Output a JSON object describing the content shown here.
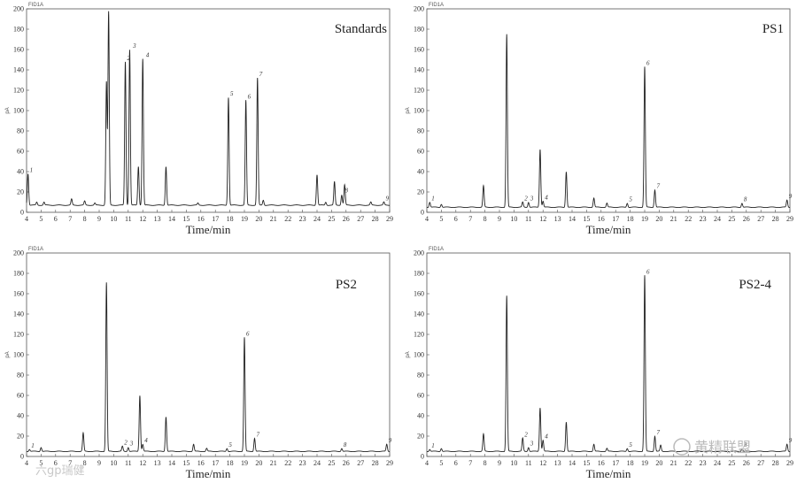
{
  "chart_data": [
    {
      "type": "line",
      "title": "Standards",
      "detector": "FID1A",
      "ylabel": "pA",
      "xlabel": "Time/min",
      "xlim": [
        4,
        29
      ],
      "ylim": [
        0,
        200
      ],
      "xticks": [
        4,
        5,
        6,
        7,
        8,
        9,
        10,
        11,
        12,
        13,
        14,
        15,
        16,
        17,
        18,
        19,
        20,
        21,
        22,
        23,
        24,
        25,
        26,
        27,
        28,
        29
      ],
      "yticks": [
        0,
        20,
        40,
        60,
        80,
        100,
        120,
        140,
        160,
        180,
        200
      ],
      "baseline": 7,
      "peaks": [
        [
          4.1,
          38
        ],
        [
          4.7,
          10
        ],
        [
          5.2,
          10
        ],
        [
          7.1,
          13
        ],
        [
          8.0,
          11
        ],
        [
          8.7,
          9
        ],
        [
          9.5,
          128
        ],
        [
          9.65,
          197
        ],
        [
          10.8,
          148
        ],
        [
          11.1,
          160
        ],
        [
          11.7,
          45
        ],
        [
          12.0,
          151
        ],
        [
          13.6,
          45
        ],
        [
          15.8,
          9
        ],
        [
          17.9,
          113
        ],
        [
          19.1,
          110
        ],
        [
          19.9,
          132
        ],
        [
          20.3,
          12
        ],
        [
          24.0,
          37
        ],
        [
          24.6,
          10
        ],
        [
          25.2,
          30
        ],
        [
          25.7,
          17
        ],
        [
          25.9,
          27
        ],
        [
          27.7,
          10
        ],
        [
          28.6,
          10
        ]
      ],
      "peak_labels": [
        {
          "x": 4.1,
          "y": 38,
          "t": "1"
        },
        {
          "x": 10.8,
          "y": 148,
          "t": "2"
        },
        {
          "x": 11.2,
          "y": 160,
          "t": "3"
        },
        {
          "x": 12.1,
          "y": 151,
          "t": "4"
        },
        {
          "x": 17.9,
          "y": 113,
          "t": "5"
        },
        {
          "x": 19.1,
          "y": 110,
          "t": "6"
        },
        {
          "x": 19.9,
          "y": 132,
          "t": "7"
        },
        {
          "x": 25.8,
          "y": 18,
          "t": "8"
        },
        {
          "x": 28.6,
          "y": 10,
          "t": "9"
        }
      ]
    },
    {
      "type": "line",
      "title": "PS1",
      "detector": "FID1A",
      "ylabel": "pA",
      "xlabel": "Time/min",
      "xlim": [
        4,
        29
      ],
      "ylim": [
        0,
        200
      ],
      "xticks": [
        4,
        5,
        6,
        7,
        8,
        9,
        10,
        11,
        12,
        13,
        14,
        15,
        16,
        17,
        18,
        19,
        20,
        21,
        22,
        23,
        24,
        25,
        26,
        27,
        28,
        29
      ],
      "yticks": [
        0,
        20,
        40,
        60,
        80,
        100,
        120,
        140,
        160,
        180,
        200
      ],
      "baseline": 5,
      "peaks": [
        [
          4.2,
          10
        ],
        [
          5.0,
          8
        ],
        [
          7.9,
          26
        ],
        [
          9.5,
          175
        ],
        [
          10.6,
          10
        ],
        [
          11.0,
          10
        ],
        [
          11.8,
          62
        ],
        [
          12.0,
          11
        ],
        [
          13.6,
          40
        ],
        [
          15.5,
          14
        ],
        [
          16.4,
          9
        ],
        [
          17.8,
          9
        ],
        [
          19.0,
          143
        ],
        [
          19.7,
          22
        ],
        [
          25.7,
          9
        ],
        [
          28.8,
          12
        ]
      ],
      "peak_labels": [
        {
          "x": 4.2,
          "y": 10,
          "t": "1"
        },
        {
          "x": 10.6,
          "y": 10,
          "t": "2"
        },
        {
          "x": 11.0,
          "y": 10,
          "t": "3"
        },
        {
          "x": 12.0,
          "y": 11,
          "t": "4"
        },
        {
          "x": 17.8,
          "y": 9,
          "t": "5"
        },
        {
          "x": 19.0,
          "y": 143,
          "t": "6"
        },
        {
          "x": 19.7,
          "y": 22,
          "t": "7"
        },
        {
          "x": 25.7,
          "y": 9,
          "t": "8"
        },
        {
          "x": 28.8,
          "y": 12,
          "t": "9"
        }
      ]
    },
    {
      "type": "line",
      "title": "PS2",
      "detector": "FID1A",
      "ylabel": "pA",
      "xlabel": "Time/min",
      "xlim": [
        4,
        29
      ],
      "ylim": [
        0,
        200
      ],
      "xticks": [
        4,
        5,
        6,
        7,
        8,
        9,
        10,
        11,
        12,
        13,
        14,
        15,
        16,
        17,
        18,
        19,
        20,
        21,
        22,
        23,
        24,
        25,
        26,
        27,
        28,
        29
      ],
      "yticks": [
        0,
        20,
        40,
        60,
        80,
        100,
        120,
        140,
        160,
        180,
        200
      ],
      "baseline": 5,
      "peaks": [
        [
          4.2,
          7
        ],
        [
          5.0,
          9
        ],
        [
          7.9,
          23
        ],
        [
          9.5,
          171
        ],
        [
          10.6,
          10
        ],
        [
          11.0,
          9
        ],
        [
          11.8,
          60
        ],
        [
          12.0,
          12
        ],
        [
          13.6,
          39
        ],
        [
          15.5,
          12
        ],
        [
          16.4,
          8
        ],
        [
          17.8,
          8
        ],
        [
          19.0,
          117
        ],
        [
          19.7,
          18
        ],
        [
          25.7,
          8
        ],
        [
          28.8,
          12
        ]
      ],
      "peak_labels": [
        {
          "x": 4.2,
          "y": 7,
          "t": "1"
        },
        {
          "x": 10.6,
          "y": 10,
          "t": "2"
        },
        {
          "x": 11.0,
          "y": 9,
          "t": "3"
        },
        {
          "x": 12.0,
          "y": 12,
          "t": "4"
        },
        {
          "x": 17.8,
          "y": 8,
          "t": "5"
        },
        {
          "x": 19.0,
          "y": 117,
          "t": "6"
        },
        {
          "x": 19.7,
          "y": 18,
          "t": "7"
        },
        {
          "x": 25.7,
          "y": 8,
          "t": "8"
        },
        {
          "x": 28.8,
          "y": 12,
          "t": "9"
        }
      ]
    },
    {
      "type": "line",
      "title": "PS2-4",
      "detector": "FID1A",
      "ylabel": "pA",
      "xlabel": "Time/min",
      "xlim": [
        4,
        29
      ],
      "ylim": [
        0,
        200
      ],
      "xticks": [
        4,
        5,
        6,
        7,
        8,
        9,
        10,
        11,
        12,
        13,
        14,
        15,
        16,
        17,
        18,
        19,
        20,
        21,
        22,
        23,
        24,
        25,
        26,
        27,
        28,
        29
      ],
      "yticks": [
        0,
        20,
        40,
        60,
        80,
        100,
        120,
        140,
        160,
        180,
        200
      ],
      "baseline": 5,
      "peaks": [
        [
          4.2,
          7
        ],
        [
          5.0,
          8
        ],
        [
          7.9,
          22
        ],
        [
          9.5,
          158
        ],
        [
          10.6,
          18
        ],
        [
          11.0,
          9
        ],
        [
          11.8,
          48
        ],
        [
          12.0,
          16
        ],
        [
          13.6,
          34
        ],
        [
          15.5,
          12
        ],
        [
          16.4,
          8
        ],
        [
          17.8,
          8
        ],
        [
          19.0,
          178
        ],
        [
          19.7,
          20
        ],
        [
          20.1,
          11
        ],
        [
          25.7,
          8
        ],
        [
          28.8,
          12
        ]
      ],
      "peak_labels": [
        {
          "x": 4.2,
          "y": 7,
          "t": "1"
        },
        {
          "x": 10.6,
          "y": 18,
          "t": "2"
        },
        {
          "x": 11.0,
          "y": 9,
          "t": "3"
        },
        {
          "x": 12.0,
          "y": 16,
          "t": "4"
        },
        {
          "x": 17.8,
          "y": 8,
          "t": "5"
        },
        {
          "x": 19.0,
          "y": 178,
          "t": "6"
        },
        {
          "x": 19.7,
          "y": 20,
          "t": "7"
        },
        {
          "x": 25.7,
          "y": 8,
          "t": "8"
        },
        {
          "x": 28.8,
          "y": 12,
          "t": "9"
        }
      ]
    }
  ],
  "watermarks": {
    "right_text": "黄精联盟",
    "left_text": "六gp瑞健"
  }
}
